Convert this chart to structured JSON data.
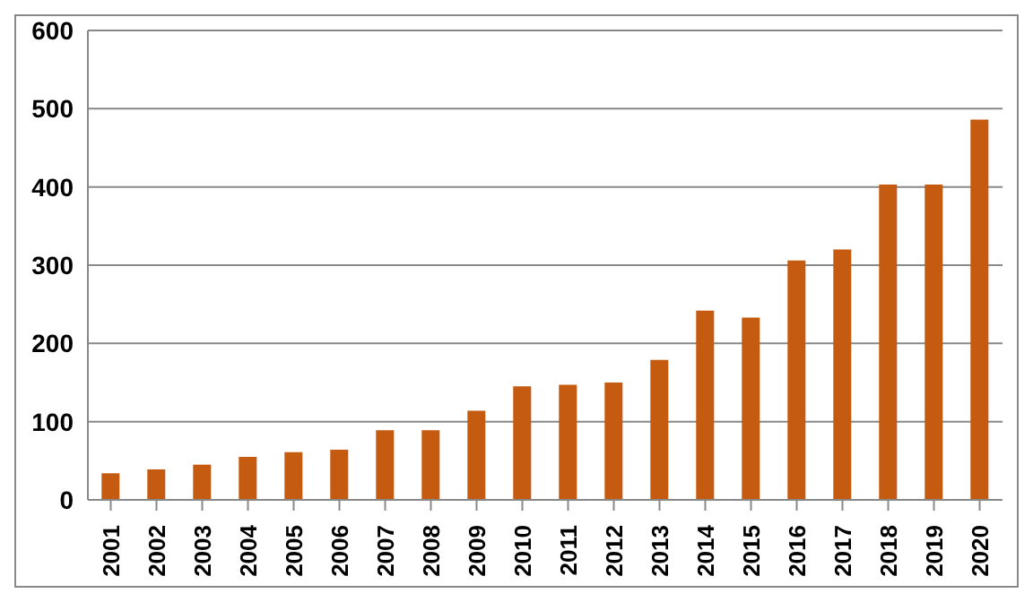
{
  "chart_data": {
    "type": "bar",
    "categories": [
      "2001",
      "2002",
      "2003",
      "2004",
      "2005",
      "2006",
      "2007",
      "2008",
      "2009",
      "2010",
      "2011",
      "2012",
      "2013",
      "2014",
      "2015",
      "2016",
      "2017",
      "2018",
      "2019",
      "2020"
    ],
    "values": [
      34,
      39,
      45,
      55,
      61,
      64,
      89,
      89,
      114,
      145,
      147,
      150,
      179,
      242,
      233,
      306,
      320,
      403,
      403,
      486
    ],
    "color": "#c55a11",
    "ylim": [
      0,
      600
    ],
    "yticks": [
      0,
      100,
      200,
      300,
      400,
      500,
      600
    ],
    "grid": "y"
  }
}
